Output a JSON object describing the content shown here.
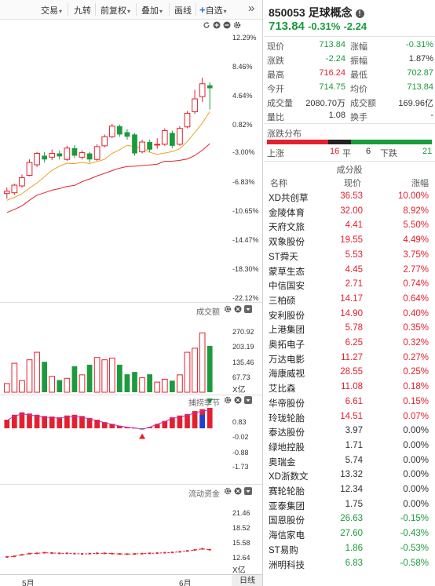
{
  "toolbar": {
    "items": [
      {
        "label": "交易",
        "caret": "▾"
      },
      {
        "label": "九转",
        "caret": ""
      },
      {
        "label": "前复权",
        "caret": "▾"
      },
      {
        "label": "叠加",
        "caret": "▾"
      },
      {
        "label": "画线",
        "caret": ""
      },
      {
        "label": "自选",
        "caret": "▾",
        "plus": "+"
      }
    ],
    "more": "»"
  },
  "chart": {
    "ctl_icons": [
      "refresh-icon",
      "zoom-in-icon",
      "zoom-out-icon",
      "gear-icon"
    ],
    "price_axis": [
      "12.29%",
      "8.46%",
      "4.64%",
      "0.82%",
      "-3.00%",
      "-6.83%",
      "-10.65%",
      "-14.47%",
      "-18.30%",
      "-22.12%"
    ],
    "volume_title": "成交额",
    "volume_axis": [
      "270.92",
      "203.19",
      "135.46",
      "67.73",
      "X亿"
    ],
    "season_title": "捕捞季节",
    "season_axis": [
      "0.83",
      "-0.02",
      "-0.88",
      "-1.73"
    ],
    "flow_title": "流动资金",
    "flow_axis": [
      "21.46",
      "18.52",
      "15.58",
      "12.64",
      "X亿"
    ],
    "x_labels": [
      "5月",
      "6月"
    ],
    "period": "日线"
  },
  "chart_data": {
    "type": "candlestick",
    "series_note": "",
    "candles": [
      {
        "o": -8.3,
        "c": -8.0,
        "h": -7.5,
        "l": -9.0,
        "up": true
      },
      {
        "o": -8.2,
        "c": -7.2,
        "h": -7.0,
        "l": -8.5,
        "up": true
      },
      {
        "o": -7.3,
        "c": -6.2,
        "h": -5.8,
        "l": -7.5,
        "up": true
      },
      {
        "o": -5.9,
        "c": -4.2,
        "h": -3.8,
        "l": -6.0,
        "up": true
      },
      {
        "o": -4.5,
        "c": -3.0,
        "h": -2.8,
        "l": -4.8,
        "up": true
      },
      {
        "o": -3.3,
        "c": -3.8,
        "h": -2.8,
        "l": -4.2,
        "up": false
      },
      {
        "o": -3.5,
        "c": -3.0,
        "h": -2.5,
        "l": -3.9,
        "up": true
      },
      {
        "o": -3.0,
        "c": -3.4,
        "h": -2.6,
        "l": -3.8,
        "up": false
      },
      {
        "o": -3.8,
        "c": -2.3,
        "h": -2.0,
        "l": -4.0,
        "up": true
      },
      {
        "o": -2.3,
        "c": -3.3,
        "h": -1.9,
        "l": -3.6,
        "up": false
      },
      {
        "o": -3.5,
        "c": -2.9,
        "h": -2.6,
        "l": -3.8,
        "up": true
      },
      {
        "o": -3.0,
        "c": -3.8,
        "h": -2.8,
        "l": -4.2,
        "up": false
      },
      {
        "o": -3.8,
        "c": -2.1,
        "h": -1.8,
        "l": -4.0,
        "up": true
      },
      {
        "o": -2.0,
        "c": -0.8,
        "h": -0.5,
        "l": -2.2,
        "up": true
      },
      {
        "o": -0.8,
        "c": 0.6,
        "h": 0.9,
        "l": -1.0,
        "up": true
      },
      {
        "o": 0.6,
        "c": -0.5,
        "h": 0.8,
        "l": -0.8,
        "up": false
      },
      {
        "o": -0.2,
        "c": -0.8,
        "h": 0.2,
        "l": -1.2,
        "up": false
      },
      {
        "o": -0.5,
        "c": -3.0,
        "h": -0.3,
        "l": -3.3,
        "up": false
      },
      {
        "o": -2.8,
        "c": -1.5,
        "h": -1.2,
        "l": -3.0,
        "up": true
      },
      {
        "o": -1.5,
        "c": -2.5,
        "h": -1.2,
        "l": -2.8,
        "up": false
      },
      {
        "o": -1.8,
        "c": -1.8,
        "h": -1.0,
        "l": -2.4,
        "up": true
      },
      {
        "o": -1.8,
        "c": 0.0,
        "h": 0.3,
        "l": -2.0,
        "up": true
      },
      {
        "o": -0.3,
        "c": -2.0,
        "h": 0.0,
        "l": -2.3,
        "up": false
      },
      {
        "o": -1.8,
        "c": 0.3,
        "h": 0.6,
        "l": -2.0,
        "up": true
      },
      {
        "o": 0.5,
        "c": 2.3,
        "h": 2.6,
        "l": 0.3,
        "up": true
      },
      {
        "o": 2.5,
        "c": 4.2,
        "h": 5.4,
        "l": 2.2,
        "up": true
      },
      {
        "o": 4.5,
        "c": 6.2,
        "h": 7.0,
        "l": 3.8,
        "up": true
      },
      {
        "o": 6.0,
        "c": 5.6,
        "h": 6.4,
        "l": 2.8,
        "up": false
      }
    ],
    "volume": [
      30,
      100,
      40,
      112,
      138,
      105,
      55,
      42,
      48,
      90,
      60,
      95,
      120,
      112,
      118,
      95,
      62,
      70,
      50,
      62,
      35,
      45,
      40,
      60,
      138,
      152,
      205,
      160
    ],
    "season": [
      0.35,
      0.55,
      0.65,
      0.6,
      0.55,
      0.5,
      0.48,
      0.45,
      0.52,
      0.55,
      0.5,
      0.42,
      0.35,
      0.25,
      0.18,
      0.1,
      0.05,
      0.02,
      -0.05,
      0.05,
      0.18,
      0.3,
      0.45,
      0.52,
      0.58,
      0.7,
      0.78,
      0.83
    ],
    "flow": [
      12.35,
      12.45,
      12.7,
      12.9,
      12.95,
      13.05,
      13.0,
      12.95,
      12.95,
      12.9,
      12.85,
      12.9,
      12.95,
      12.95,
      12.9,
      12.85,
      12.82,
      12.85,
      12.9,
      12.95,
      12.98,
      13.05,
      13.1,
      13.2,
      13.35,
      13.5,
      13.7,
      13.55
    ],
    "ylim_price": [
      -22.12,
      12.29
    ],
    "ylim_volume": [
      0,
      270.92
    ],
    "ylim_season": [
      -1.73,
      0.83
    ],
    "ylim_flow": [
      10,
      21.46
    ]
  },
  "quote": {
    "code": "850053",
    "name": "足球概念",
    "info_icon": "info-icon",
    "price": "713.84",
    "pct": "-0.31%",
    "chg": "-2.24",
    "rows": [
      [
        {
          "k": "现价",
          "v": "713.84",
          "c": "green"
        },
        {
          "k": "涨幅",
          "v": "-0.31%",
          "c": "green"
        }
      ],
      [
        {
          "k": "涨跌",
          "v": "-2.24",
          "c": "green"
        },
        {
          "k": "振幅",
          "v": "1.87%",
          "c": "gray"
        }
      ],
      [
        {
          "k": "最高",
          "v": "716.24",
          "c": "red"
        },
        {
          "k": "最低",
          "v": "702.87",
          "c": "green"
        }
      ],
      [
        {
          "k": "今开",
          "v": "714.75",
          "c": "green"
        },
        {
          "k": "均价",
          "v": "713.84",
          "c": "green"
        }
      ],
      [
        {
          "k": "成交量",
          "v": "2080.70万",
          "c": "gray"
        },
        {
          "k": "成交额",
          "v": "169.96亿",
          "c": "gray"
        }
      ],
      [
        {
          "k": "量比",
          "v": "1.08",
          "c": "gray"
        },
        {
          "k": "换手",
          "v": "-",
          "c": "gray"
        }
      ]
    ],
    "dist_title": "涨跌分布",
    "dist": {
      "up_label": "上涨",
      "up": "16",
      "flat_label": "平",
      "flat": "6",
      "down_label": "下跌",
      "down": "21",
      "up_n": 16,
      "flat_n": 6,
      "down_n": 21
    }
  },
  "constituents": {
    "title": "成分股",
    "headers": [
      "名称",
      "现价",
      "涨幅"
    ],
    "rows": [
      [
        "XD共创草",
        "36.53",
        "10.00%",
        "red"
      ],
      [
        "金陵体育",
        "32.00",
        "8.92%",
        "red"
      ],
      [
        "天府文旅",
        "4.41",
        "5.50%",
        "red"
      ],
      [
        "双象股份",
        "19.55",
        "4.49%",
        "red"
      ],
      [
        "ST舜天",
        "5.53",
        "3.75%",
        "red"
      ],
      [
        "蒙草生态",
        "4.45",
        "2.77%",
        "red"
      ],
      [
        "中信国安",
        "2.71",
        "0.74%",
        "red"
      ],
      [
        "三柏硕",
        "14.17",
        "0.64%",
        "red"
      ],
      [
        "安利股份",
        "14.90",
        "0.40%",
        "red"
      ],
      [
        "上港集团",
        "5.78",
        "0.35%",
        "red"
      ],
      [
        "奥拓电子",
        "6.25",
        "0.32%",
        "red"
      ],
      [
        "万达电影",
        "11.27",
        "0.27%",
        "red"
      ],
      [
        "海康威视",
        "28.55",
        "0.25%",
        "red"
      ],
      [
        "艾比森",
        "11.08",
        "0.18%",
        "red"
      ],
      [
        "华帝股份",
        "6.61",
        "0.15%",
        "red"
      ],
      [
        "玲珑轮胎",
        "14.51",
        "0.07%",
        "red"
      ],
      [
        "泰达股份",
        "3.97",
        "0.00%",
        "gray"
      ],
      [
        "绿地控股",
        "1.71",
        "0.00%",
        "gray"
      ],
      [
        "奥瑞金",
        "5.74",
        "0.00%",
        "gray"
      ],
      [
        "XD浙数文",
        "13.32",
        "0.00%",
        "gray"
      ],
      [
        "赛轮轮胎",
        "12.34",
        "0.00%",
        "gray"
      ],
      [
        "亚泰集团",
        "1.75",
        "0.00%",
        "gray"
      ],
      [
        "国恩股份",
        "26.63",
        "-0.15%",
        "green"
      ],
      [
        "海信家电",
        "27.60",
        "-0.43%",
        "green"
      ],
      [
        "ST易购",
        "1.86",
        "-0.53%",
        "green"
      ],
      [
        "洲明科技",
        "6.83",
        "-0.58%",
        "green"
      ]
    ]
  }
}
